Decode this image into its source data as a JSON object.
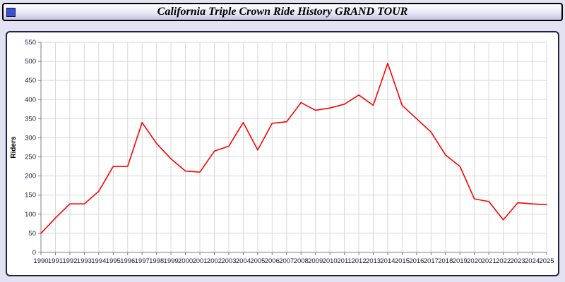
{
  "window": {
    "title": "California Triple Crown Ride History GRAND TOUR"
  },
  "chart_data": {
    "type": "line",
    "title": "California Triple Crown Ride History GRAND TOUR",
    "xlabel": "",
    "ylabel": "Riders",
    "x": [
      1990,
      1991,
      1992,
      1993,
      1994,
      1995,
      1996,
      1997,
      1998,
      1999,
      2000,
      2001,
      2002,
      2003,
      2004,
      2005,
      2006,
      2007,
      2008,
      2009,
      2010,
      2011,
      2012,
      2013,
      2014,
      2015,
      2016,
      2017,
      2018,
      2019,
      2020,
      2021,
      2022,
      2023,
      2024,
      2025
    ],
    "values": [
      50,
      90,
      127,
      127,
      160,
      225,
      225,
      340,
      285,
      245,
      213,
      210,
      265,
      278,
      340,
      268,
      338,
      342,
      392,
      372,
      378,
      388,
      412,
      385,
      495,
      385,
      350,
      315,
      255,
      225,
      140,
      133,
      85,
      130,
      127,
      125
    ],
    "ylim": [
      0,
      550
    ],
    "ytick_step": 50,
    "line_color": "#ff0000",
    "grid": true,
    "legend": "none"
  },
  "colors": {
    "grid": "#d8d8d8",
    "axis": "#808080",
    "tick_text": "#1a1a3a",
    "plot_bg": "#ffffff"
  }
}
